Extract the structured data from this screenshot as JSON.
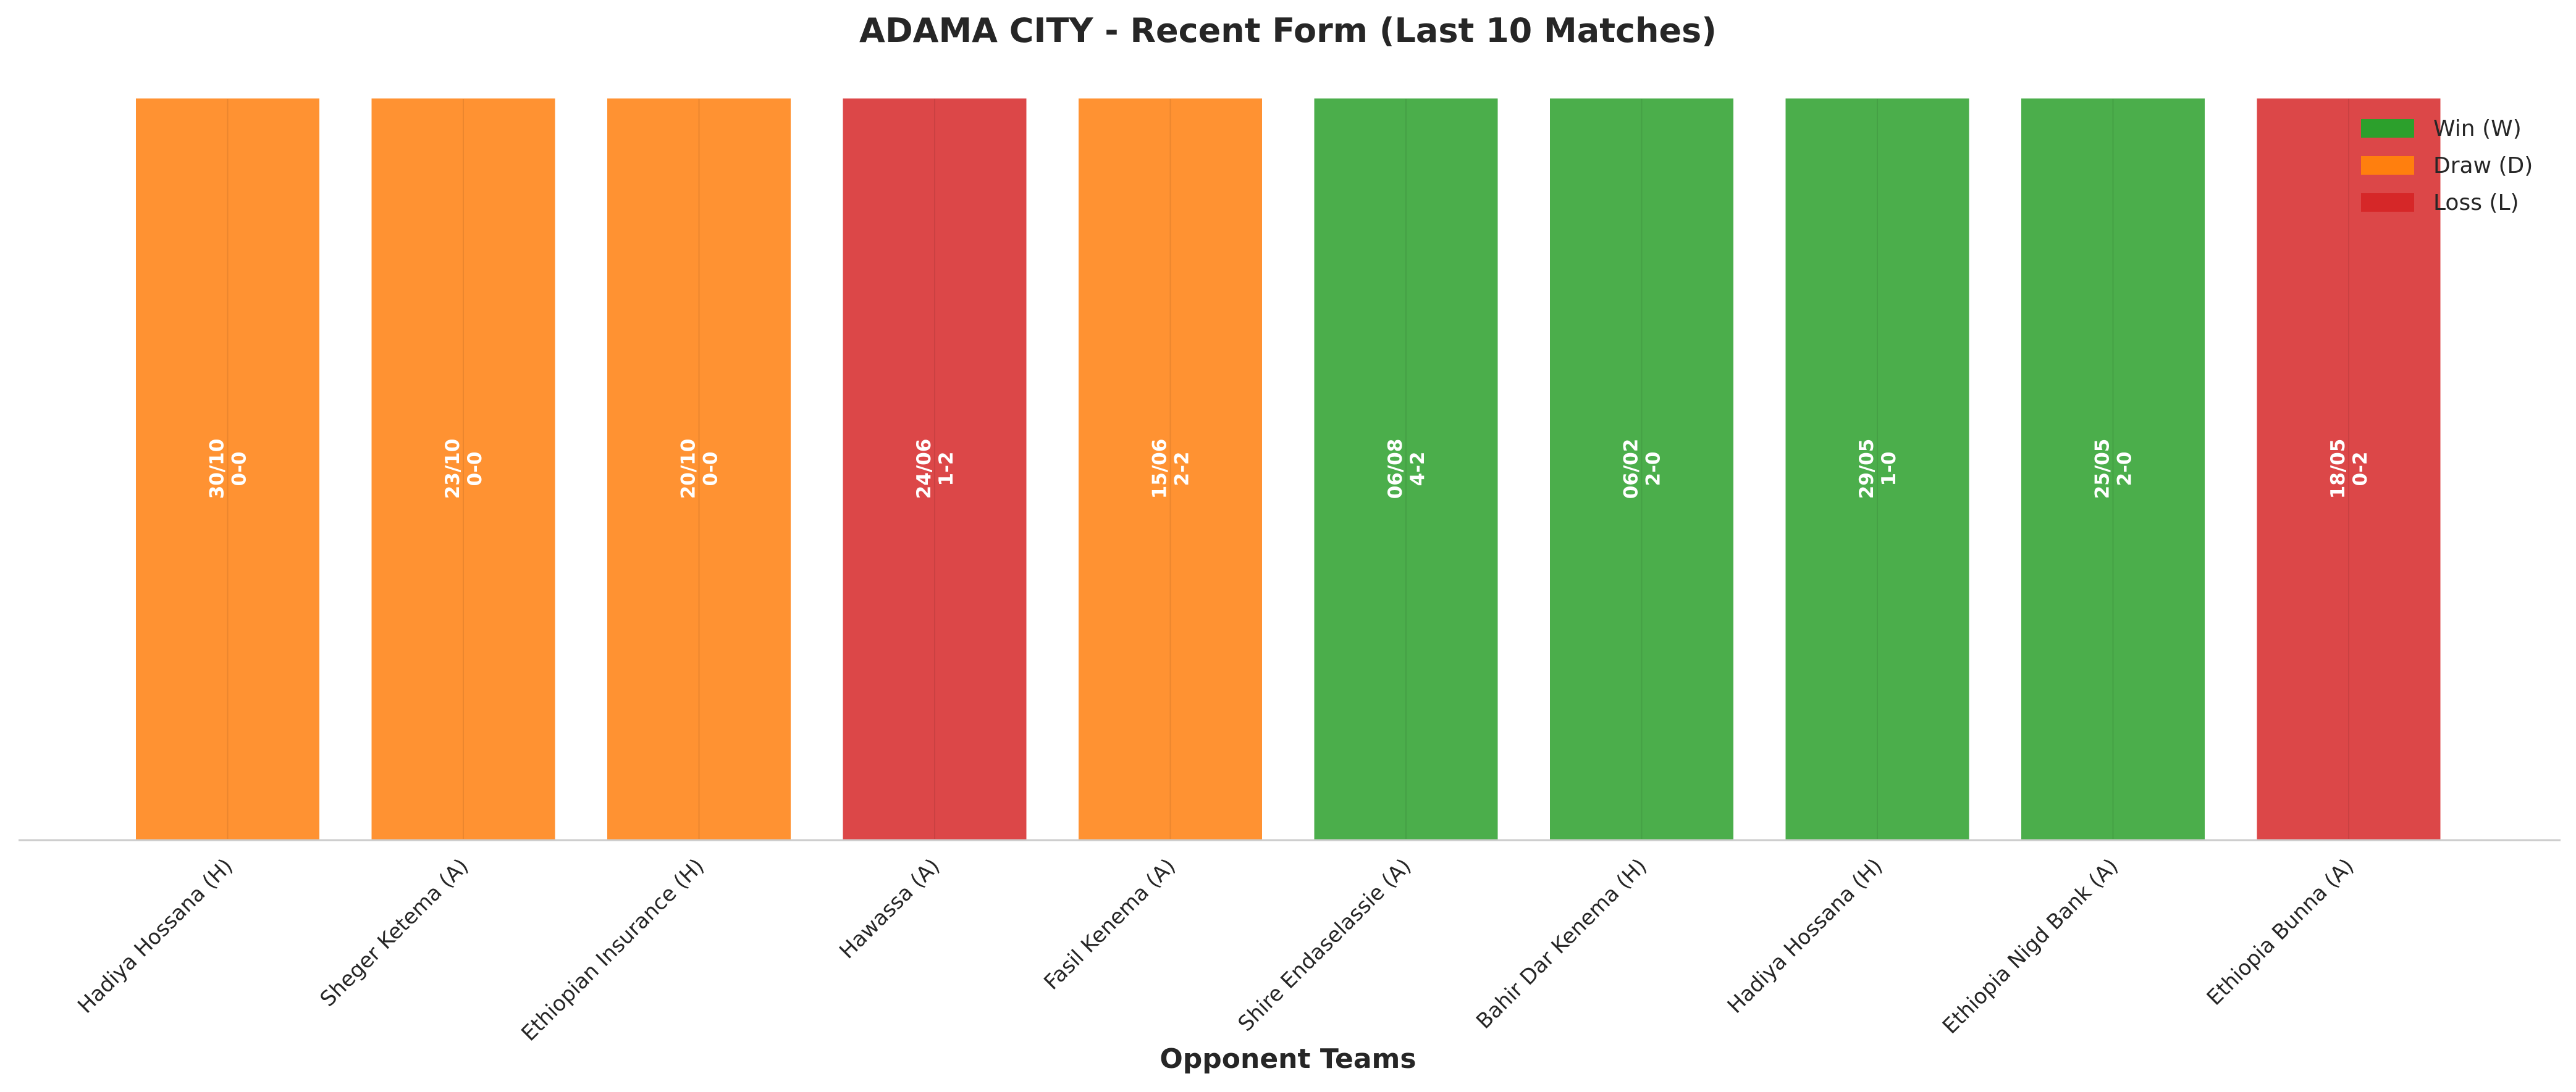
{
  "chart_data": {
    "type": "bar",
    "title": "ADAMA CITY - Recent Form (Last 10 Matches)",
    "xlabel": "Opponent Teams",
    "ylabel": "",
    "ylim": [
      0,
      1
    ],
    "grid": false,
    "legend_position": "top-right",
    "colors": {
      "W": "#2ca02c",
      "D": "#ff7f0e",
      "L": "#d62728"
    },
    "legend": [
      {
        "result": "W",
        "label": "Win (W)"
      },
      {
        "result": "D",
        "label": "Draw (D)"
      },
      {
        "result": "L",
        "label": "Loss (L)"
      }
    ],
    "categories": [
      "Hadiya Hossana (H)",
      "Sheger Ketema (A)",
      "Ethiopian Insurance (H)",
      "Hawassa (A)",
      "Fasil Kenema (A)",
      "Shire Endaselassie (A)",
      "Bahir Dar Kenema (H)",
      "Hadiya Hossana (H)",
      "Ethiopia Nigd Bank (A)",
      "Ethiopia Bunna (A)"
    ],
    "values": [
      1,
      1,
      1,
      1,
      1,
      1,
      1,
      1,
      1,
      1
    ],
    "results": [
      "D",
      "D",
      "D",
      "L",
      "D",
      "W",
      "W",
      "W",
      "W",
      "L"
    ],
    "dates": [
      "30/10",
      "23/10",
      "20/10",
      "24/06",
      "15/06",
      "06/08",
      "06/02",
      "29/05",
      "25/05",
      "18/05"
    ],
    "scores": [
      "0-0",
      "0-0",
      "0-0",
      "1-2",
      "2-2",
      "4-2",
      "2-0",
      "1-0",
      "2-0",
      "0-2"
    ]
  }
}
